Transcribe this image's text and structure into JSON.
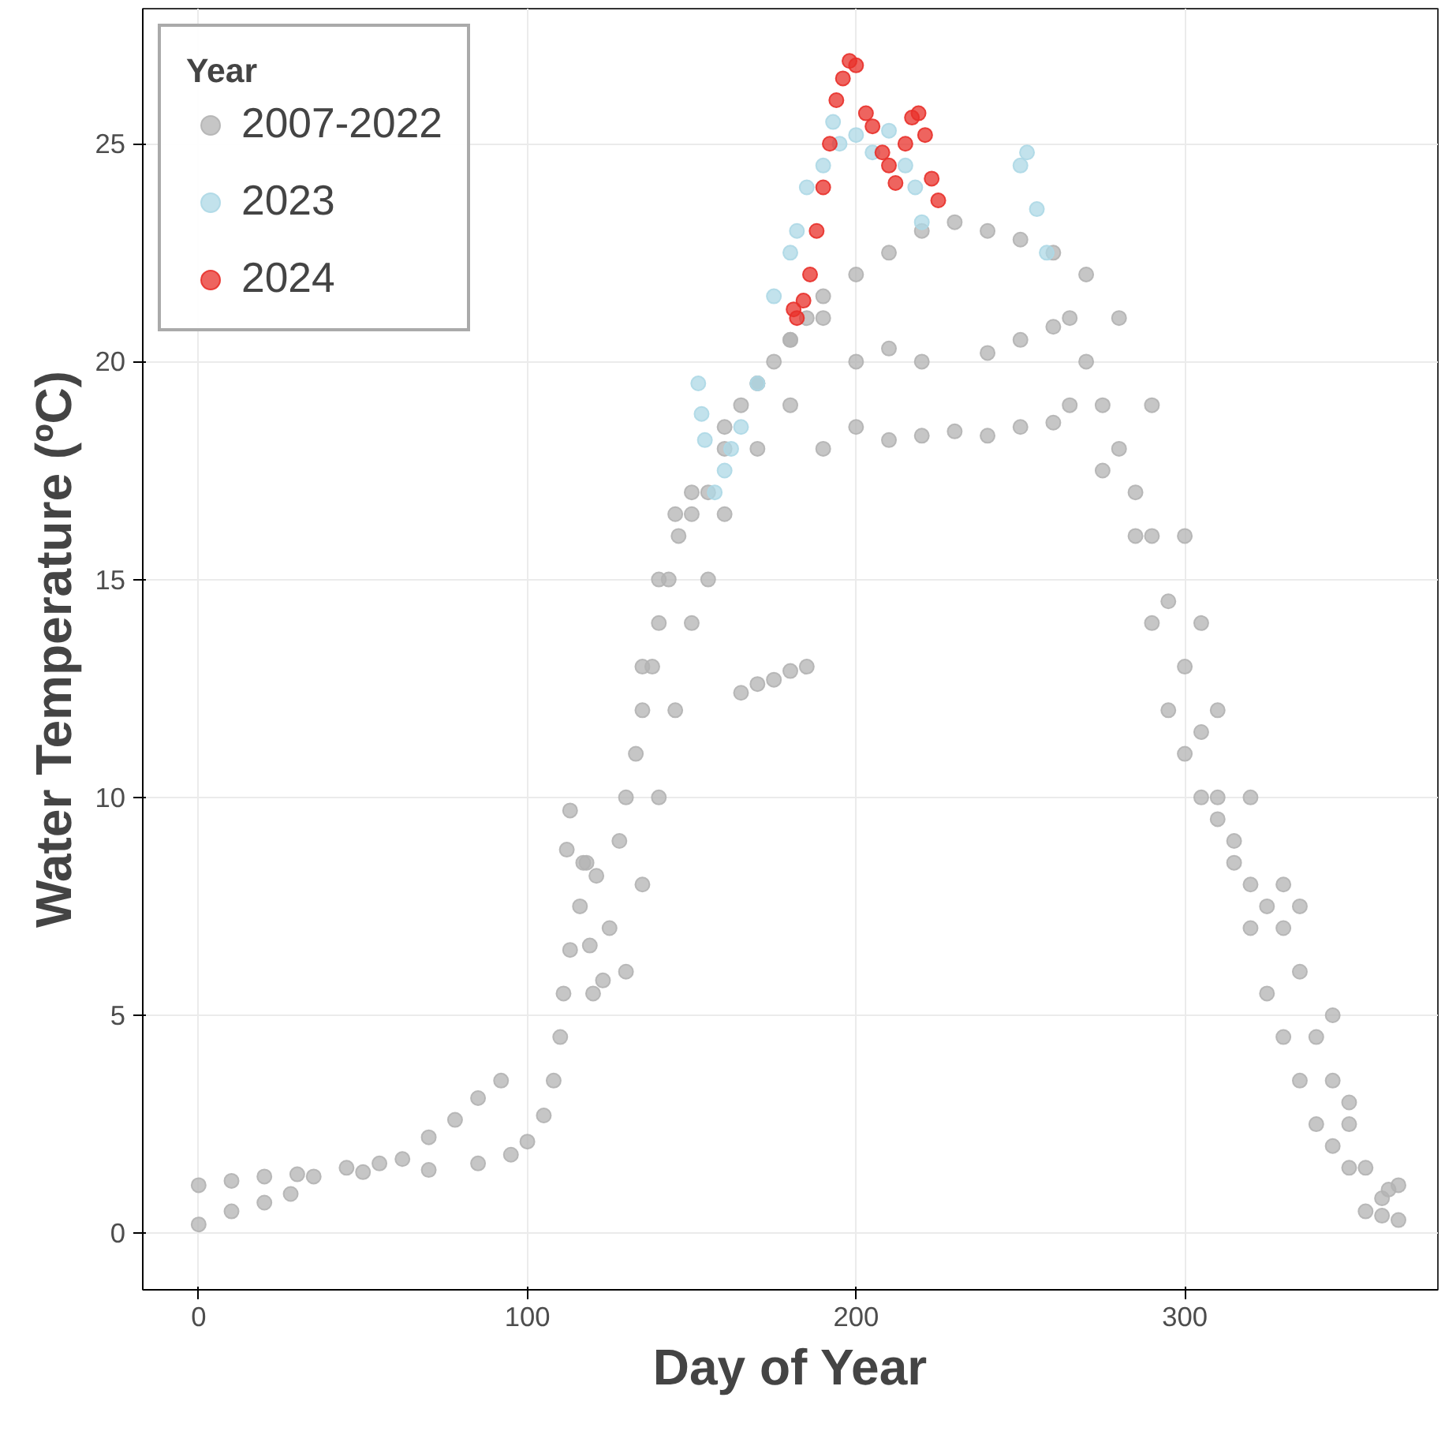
{
  "chart_data": {
    "type": "scatter",
    "xlabel": "Day of Year",
    "ylabel": "Water Temperature (ºC)",
    "legend_title": "Year",
    "xlim": [
      -17,
      377
    ],
    "ylim": [
      -1.3,
      28.1
    ],
    "xticks": [
      0,
      100,
      200,
      300
    ],
    "yticks": [
      0,
      5,
      10,
      15,
      20,
      25
    ],
    "grid": true,
    "legend": "top left",
    "marker": "circle",
    "series": [
      {
        "name": "2007-2022",
        "color": "#b3b3b3",
        "x": [
          0,
          10,
          20,
          28,
          35,
          45,
          55,
          62,
          70,
          78,
          85,
          92,
          0,
          10,
          20,
          30,
          50,
          70,
          85,
          95,
          100,
          105,
          108,
          110,
          111,
          113,
          116,
          118,
          113,
          112,
          117,
          121,
          119,
          120,
          123,
          125,
          128,
          130,
          133,
          135,
          138,
          140,
          143,
          146,
          150,
          155,
          160,
          165,
          170,
          175,
          180,
          185,
          190,
          130,
          135,
          140,
          145,
          150,
          155,
          160,
          170,
          180,
          135,
          140,
          145,
          150,
          160,
          170,
          180,
          190,
          200,
          210,
          220,
          230,
          240,
          250,
          260,
          165,
          170,
          175,
          180,
          185,
          190,
          200,
          210,
          220,
          230,
          240,
          250,
          260,
          200,
          210,
          220,
          240,
          250,
          260,
          265,
          270,
          275,
          280,
          285,
          290,
          295,
          300,
          305,
          310,
          315,
          320,
          325,
          330,
          335,
          340,
          345,
          350,
          355,
          360,
          365,
          265,
          275,
          285,
          290,
          295,
          300,
          305,
          310,
          315,
          320,
          325,
          330,
          335,
          340,
          345,
          350,
          355,
          360,
          365,
          362,
          270,
          280,
          290,
          300,
          305,
          310,
          320,
          330,
          335,
          345,
          350
        ],
        "values": [
          0.2,
          0.5,
          0.7,
          0.9,
          1.3,
          1.5,
          1.6,
          1.7,
          2.2,
          2.6,
          3.1,
          3.5,
          1.1,
          1.2,
          1.3,
          1.35,
          1.4,
          1.45,
          1.6,
          1.8,
          2.1,
          2.7,
          3.5,
          4.5,
          5.5,
          6.5,
          7.5,
          8.5,
          9.7,
          8.8,
          8.5,
          8.2,
          6.6,
          5.5,
          5.8,
          7,
          9,
          10,
          11,
          12,
          13,
          14,
          15,
          16,
          16.5,
          17,
          18,
          19,
          19.5,
          20,
          20.5,
          21,
          21.5,
          6,
          8,
          10,
          12,
          14,
          15,
          16.5,
          18,
          19,
          13,
          15,
          16.5,
          17,
          18.5,
          19.5,
          20.5,
          21,
          22,
          22.5,
          23,
          23.2,
          23,
          22.8,
          22.5,
          12.4,
          12.6,
          12.7,
          12.9,
          13,
          18,
          18.5,
          18.2,
          18.3,
          18.4,
          18.3,
          18.5,
          18.6,
          20,
          20.3,
          20,
          20.2,
          20.5,
          20.8,
          21,
          20,
          19,
          18,
          17,
          16,
          14.5,
          13,
          11.5,
          10,
          9,
          8,
          7.5,
          7,
          6,
          4.5,
          3.5,
          2.5,
          1.5,
          0.8,
          0.3,
          19,
          17.5,
          16,
          14,
          12,
          11,
          10,
          9.5,
          8.5,
          7,
          5.5,
          4.5,
          3.5,
          2.5,
          2,
          1.5,
          0.5,
          0.4,
          1.1,
          1.0,
          22,
          21,
          19,
          16,
          14,
          12,
          10,
          8,
          7.5,
          5,
          3
        ]
      },
      {
        "name": "2023",
        "color": "#add8e6",
        "x": [
          152,
          153,
          154,
          157,
          160,
          162,
          165,
          170,
          175,
          180,
          182,
          185,
          190,
          193,
          195,
          200,
          205,
          210,
          215,
          218,
          220,
          250,
          252,
          255,
          258
        ],
        "values": [
          19.5,
          18.8,
          18.2,
          17,
          17.5,
          18,
          18.5,
          19.5,
          21.5,
          22.5,
          23,
          24,
          24.5,
          25.5,
          25,
          25.2,
          24.8,
          25.3,
          24.5,
          24,
          23.2,
          24.5,
          24.8,
          23.5,
          22.5
        ]
      },
      {
        "name": "2024",
        "color": "#e8302a",
        "x": [
          181,
          182,
          184,
          186,
          188,
          190,
          192,
          194,
          196,
          198,
          200,
          203,
          205,
          208,
          210,
          212,
          215,
          217,
          219,
          221,
          223,
          225
        ],
        "values": [
          21.2,
          21,
          21.4,
          22,
          23,
          24,
          25,
          26,
          26.5,
          26.9,
          26.8,
          25.7,
          25.4,
          24.8,
          24.5,
          24.1,
          25,
          25.6,
          25.7,
          25.2,
          24.2,
          23.7
        ]
      }
    ]
  }
}
